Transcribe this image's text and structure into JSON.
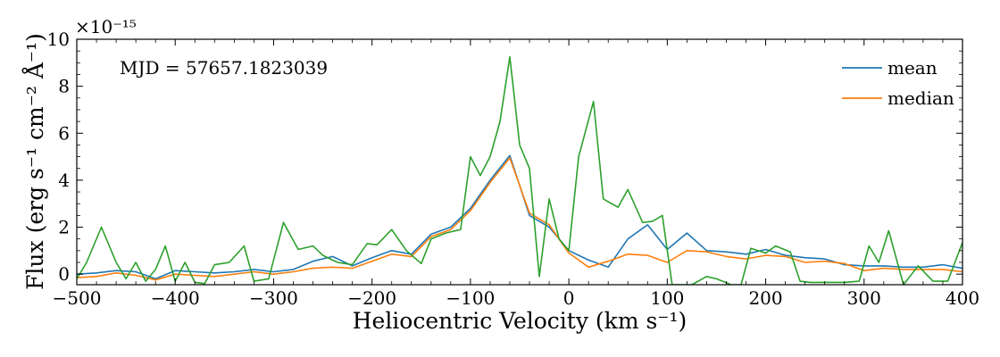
{
  "chart_data": {
    "type": "line",
    "annotation": "MJD = 57657.1823039",
    "xlabel": "Heliocentric Velocity (km s⁻¹)",
    "ylabel": "Flux (erg s⁻¹ cm⁻² Å⁻¹)",
    "y_multiplier": "×10⁻¹⁵",
    "xlim": [
      -500,
      400
    ],
    "ylim": [
      -0.45,
      10
    ],
    "x_ticks": [
      -500,
      -400,
      -300,
      -200,
      -100,
      0,
      100,
      200,
      300,
      400
    ],
    "x_tick_labels": [
      "−500",
      "−400",
      "−300",
      "−200",
      "−100",
      "0",
      "100",
      "200",
      "300",
      "400"
    ],
    "y_ticks": [
      0,
      2,
      4,
      6,
      8,
      10
    ],
    "y_tick_labels": [
      "0",
      "2",
      "4",
      "6",
      "8",
      "10"
    ],
    "grid": false,
    "legend_position": "top-right",
    "series": [
      {
        "name": "mean",
        "color": "#1f77b4",
        "x": [
          -500,
          -480,
          -460,
          -440,
          -420,
          -400,
          -380,
          -360,
          -340,
          -320,
          -300,
          -280,
          -260,
          -240,
          -220,
          -200,
          -180,
          -160,
          -140,
          -120,
          -100,
          -80,
          -60,
          -40,
          -20,
          0,
          20,
          40,
          60,
          80,
          100,
          120,
          140,
          160,
          180,
          200,
          220,
          240,
          260,
          280,
          300,
          320,
          340,
          360,
          380,
          400
        ],
        "y": [
          0.0,
          0.05,
          0.15,
          0.1,
          -0.2,
          0.15,
          0.1,
          0.05,
          0.1,
          0.2,
          0.1,
          0.2,
          0.55,
          0.75,
          0.35,
          0.7,
          1.0,
          0.85,
          1.7,
          2.0,
          2.8,
          4.0,
          5.05,
          2.5,
          2.0,
          1.0,
          0.6,
          0.3,
          1.5,
          2.1,
          1.05,
          1.75,
          1.0,
          0.95,
          0.85,
          1.05,
          0.8,
          0.7,
          0.65,
          0.4,
          0.35,
          0.35,
          0.3,
          0.3,
          0.4,
          0.25
        ]
      },
      {
        "name": "median",
        "color": "#ff7f0e",
        "x": [
          -500,
          -480,
          -460,
          -440,
          -420,
          -400,
          -380,
          -360,
          -340,
          -320,
          -300,
          -280,
          -260,
          -240,
          -220,
          -200,
          -180,
          -160,
          -140,
          -120,
          -100,
          -80,
          -60,
          -40,
          -20,
          0,
          20,
          40,
          60,
          80,
          100,
          120,
          140,
          160,
          180,
          200,
          220,
          240,
          260,
          280,
          300,
          320,
          340,
          360,
          380,
          400
        ],
        "y": [
          -0.15,
          -0.1,
          0.05,
          -0.05,
          -0.25,
          0.0,
          -0.05,
          -0.1,
          0.0,
          0.1,
          0.0,
          0.1,
          0.25,
          0.3,
          0.25,
          0.55,
          0.85,
          0.75,
          1.6,
          1.9,
          2.7,
          3.9,
          4.95,
          2.6,
          2.1,
          0.9,
          0.3,
          0.55,
          0.85,
          0.8,
          0.5,
          1.0,
          0.95,
          0.75,
          0.65,
          0.8,
          0.75,
          0.5,
          0.55,
          0.45,
          0.15,
          0.25,
          0.2,
          0.2,
          0.2,
          0.1
        ]
      },
      {
        "name": "",
        "color": "#2ca02c",
        "x": [
          -500,
          -490,
          -475,
          -460,
          -450,
          -440,
          -430,
          -420,
          -410,
          -400,
          -390,
          -380,
          -370,
          -360,
          -345,
          -330,
          -320,
          -305,
          -290,
          -275,
          -260,
          -250,
          -235,
          -220,
          -205,
          -195,
          -180,
          -165,
          -150,
          -140,
          -125,
          -110,
          -100,
          -90,
          -80,
          -70,
          -60,
          -50,
          -40,
          -30,
          -20,
          -10,
          0,
          10,
          25,
          35,
          50,
          60,
          75,
          85,
          95,
          105,
          110,
          115,
          125,
          140,
          150,
          165,
          175,
          185,
          200,
          210,
          225,
          235,
          245,
          255,
          265,
          280,
          295,
          305,
          315,
          325,
          340,
          355,
          370,
          385,
          400
        ],
        "y": [
          -0.2,
          0.5,
          2.0,
          0.5,
          -0.2,
          0.5,
          -0.3,
          0.2,
          1.2,
          -0.3,
          0.5,
          -0.35,
          -0.4,
          0.4,
          0.5,
          1.2,
          -0.3,
          -0.2,
          2.2,
          1.05,
          1.2,
          0.8,
          0.5,
          0.4,
          1.3,
          1.25,
          1.9,
          1.0,
          0.45,
          1.5,
          1.75,
          1.9,
          5.0,
          4.2,
          5.0,
          6.5,
          9.25,
          5.5,
          4.5,
          -0.1,
          3.2,
          1.5,
          1.0,
          5.0,
          7.35,
          3.2,
          2.85,
          3.6,
          2.2,
          2.25,
          2.5,
          -0.45,
          -0.45,
          -0.45,
          -0.45,
          -0.1,
          -0.2,
          -0.45,
          -0.45,
          1.1,
          0.9,
          1.2,
          0.95,
          -0.3,
          -0.35,
          -0.35,
          -0.35,
          -0.35,
          -0.3,
          1.2,
          0.5,
          1.85,
          -0.45,
          0.35,
          -0.3,
          -0.3,
          1.35
        ]
      }
    ]
  }
}
